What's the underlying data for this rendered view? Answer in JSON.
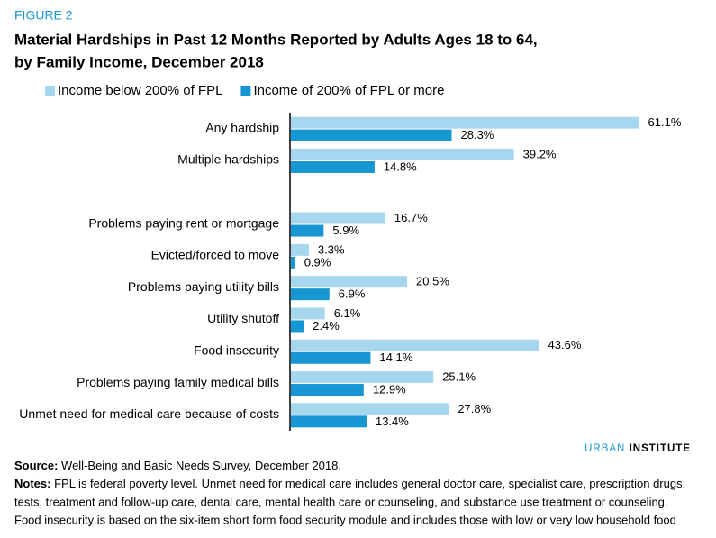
{
  "chart_data": {
    "type": "bar",
    "orientation": "horizontal",
    "figure_label": "FIGURE 2",
    "title": [
      "Material Hardships in Past 12 Months Reported by Adults Ages 18 to 64,",
      "by Family Income, December 2018"
    ],
    "categories": [
      "Any hardship",
      "Multiple hardships",
      null,
      "Problems paying rent or mortgage",
      "Evicted/forced to move",
      "Problems paying utility bills",
      "Utility shutoff",
      "Food insecurity",
      "Problems paying family medical bills",
      "Unmet need for medical care because of costs"
    ],
    "series": [
      {
        "name": "Income below 200% of FPL",
        "color": "#a6d7ee",
        "values": [
          61.1,
          39.2,
          null,
          16.7,
          3.3,
          20.5,
          6.1,
          43.6,
          25.1,
          27.8
        ],
        "value_labels": [
          "61.1%",
          "39.2%",
          null,
          "16.7%",
          "3.3%",
          "20.5%",
          "6.1%",
          "43.6%",
          "25.1%",
          "27.8%"
        ]
      },
      {
        "name": "Income of 200% of FPL or more",
        "color": "#1696d2",
        "values": [
          28.3,
          14.8,
          null,
          5.9,
          0.9,
          6.9,
          2.4,
          14.1,
          12.9,
          13.4
        ],
        "value_labels": [
          "28.3%",
          "14.8%",
          null,
          "5.9%",
          "0.9%",
          "6.9%",
          "2.4%",
          "14.1%",
          "12.9%",
          "13.4%"
        ]
      }
    ],
    "xlim": [
      0,
      70
    ],
    "brand": [
      "URBAN",
      "INSTITUTE"
    ],
    "source_label": "Source:",
    "source": "Well-Being and Basic Needs Survey, December 2018.",
    "notes_label": "Notes:",
    "notes": [
      "FPL is federal poverty level. Unmet need for medical care includes general doctor care, specialist care, prescription drugs,",
      "tests, treatment and follow-up care, dental care, mental health care or counseling, and substance use treatment or counseling.",
      "Food insecurity is based on the six-item short form food security module and includes those with low or very low household food"
    ]
  }
}
